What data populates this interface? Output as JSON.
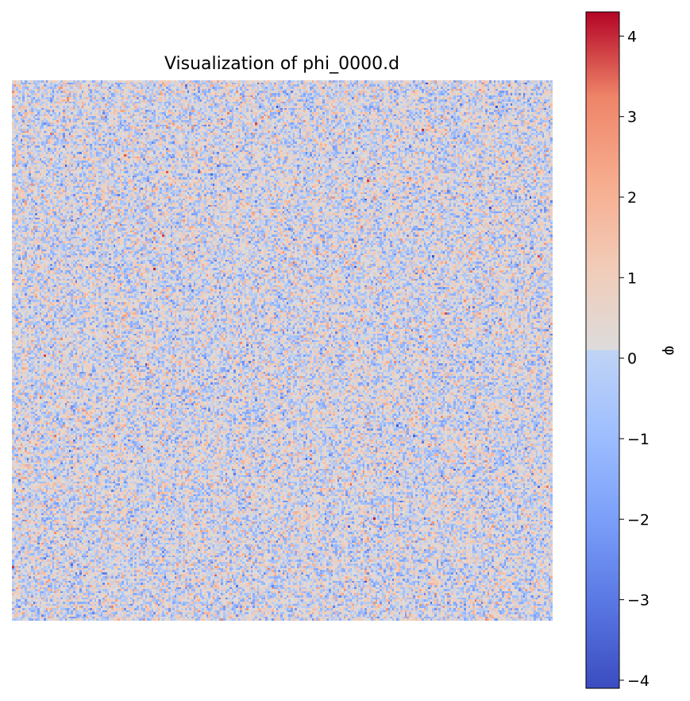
{
  "chart_data": {
    "type": "heatmap",
    "title": "Visualization of phi_0000.d",
    "colormap": "coolwarm",
    "axes_visible": false,
    "grid": false,
    "field": {
      "rows": 256,
      "cols": 256,
      "distribution": "random noise",
      "mean": 0,
      "std": 1
    },
    "colorbar": {
      "label": "φ",
      "vmin": -4.1,
      "vmax": 4.3,
      "ticks": [
        4,
        3,
        2,
        1,
        0,
        -1,
        -2,
        -3,
        -4
      ],
      "tick_labels": [
        "4",
        "3",
        "2",
        "1",
        "0",
        "−1",
        "−2",
        "−3",
        "−4"
      ],
      "placement": "right"
    }
  }
}
